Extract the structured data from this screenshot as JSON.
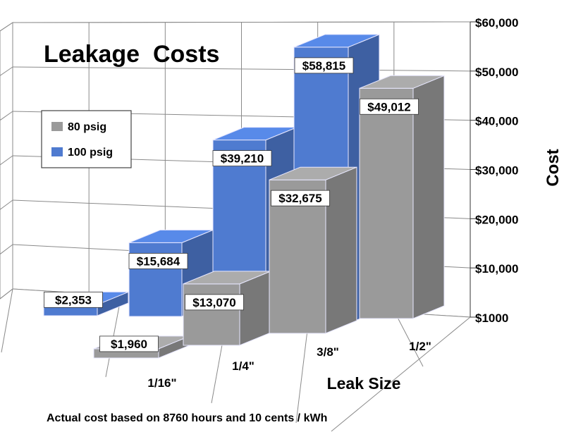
{
  "chart_data": {
    "type": "bar",
    "title": "Leakage  Costs",
    "subtitle": "Actual cost based on 8760 hours and 10 cents / kWh",
    "xlabel": "Leak Size",
    "ylabel": "Cost",
    "categories": [
      "1/16\"",
      "1/4\"",
      "3/8\"",
      "1/2\""
    ],
    "y_ticks": [
      "$1000",
      "$10,000",
      "$20,000",
      "$30,000",
      "$40,000",
      "$50,000",
      "$60,000"
    ],
    "ylim": [
      0,
      60000
    ],
    "grid": true,
    "legend_position": "left",
    "series": [
      {
        "name": "80 psig",
        "color": "#9a9a9a",
        "values": [
          1960,
          13070,
          32675,
          49012
        ],
        "labels": [
          "$1,960",
          "$13,070",
          "$32,675",
          "$49,012"
        ]
      },
      {
        "name": "100 psig",
        "color": "#4f7bd0",
        "values": [
          2353,
          15684,
          39210,
          58815
        ],
        "labels": [
          "$2,353",
          "$15,684",
          "$39,210",
          "$58,815"
        ]
      }
    ]
  }
}
